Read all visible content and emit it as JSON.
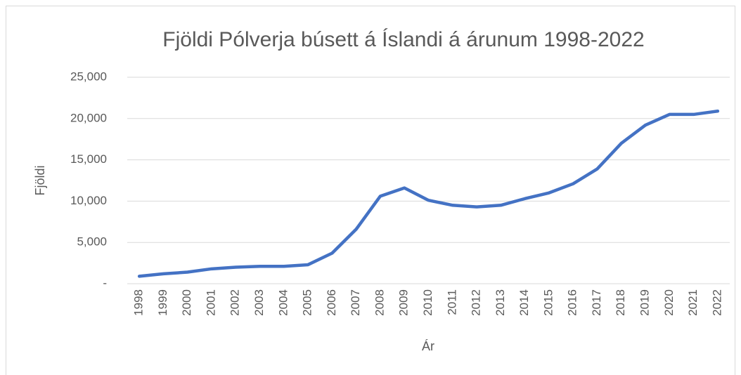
{
  "chart_data": {
    "type": "line",
    "title": "Fjöldi Pólverja búsett á Íslandi á árunum 1998-2022",
    "x_label": "Ár",
    "y_label": "Fjöldi",
    "categories": [
      "1998",
      "1999",
      "2000",
      "2001",
      "2002",
      "2003",
      "2004",
      "2005",
      "2006",
      "2007",
      "2008",
      "2009",
      "2010",
      "2011",
      "2012",
      "2013",
      "2014",
      "2015",
      "2016",
      "2017",
      "2018",
      "2019",
      "2020",
      "2021",
      "2022"
    ],
    "values": [
      900,
      1200,
      1400,
      1800,
      2000,
      2100,
      2100,
      2300,
      3700,
      6600,
      10600,
      11600,
      10100,
      9500,
      9300,
      9500,
      10300,
      11000,
      12100,
      13900,
      17000,
      19200,
      20500,
      20500,
      20900
    ],
    "color": "#4472c4",
    "ylim": [
      0,
      25000
    ],
    "yticks": [
      {
        "value": 0,
        "label": "-"
      },
      {
        "value": 5000,
        "label": "5,000"
      },
      {
        "value": 10000,
        "label": "10,000"
      },
      {
        "value": 15000,
        "label": "15,000"
      },
      {
        "value": 20000,
        "label": "20,000"
      },
      {
        "value": 25000,
        "label": "25,000"
      }
    ],
    "grid": true
  }
}
